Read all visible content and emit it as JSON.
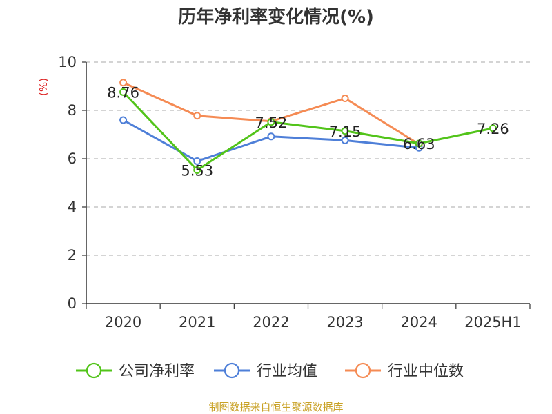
{
  "chart_data": {
    "type": "line",
    "title": "历年净利率变化情况(%)",
    "ylabel": "(%)",
    "xlabel": "",
    "categories": [
      "2020",
      "2021",
      "2022",
      "2023",
      "2024",
      "2025H1"
    ],
    "ylim": [
      0,
      10
    ],
    "yticks": [
      0,
      2,
      4,
      6,
      8,
      10
    ],
    "grid": true,
    "legend_position": "bottom",
    "series": [
      {
        "name": "公司净利率",
        "color": "#52c41a",
        "values": [
          8.76,
          5.53,
          7.52,
          7.15,
          6.63,
          7.26
        ],
        "labels": [
          "8.76",
          "5.53",
          "7.52",
          "7.15",
          "6.63",
          "7.26"
        ]
      },
      {
        "name": "行业均值",
        "color": "#4e7fd8",
        "values": [
          7.6,
          5.9,
          6.92,
          6.76,
          6.45,
          null
        ]
      },
      {
        "name": "行业中位数",
        "color": "#f58b54",
        "values": [
          9.15,
          7.78,
          7.55,
          8.5,
          6.6,
          null
        ]
      }
    ]
  },
  "source_text": "制图数据来自恒生聚源数据库"
}
